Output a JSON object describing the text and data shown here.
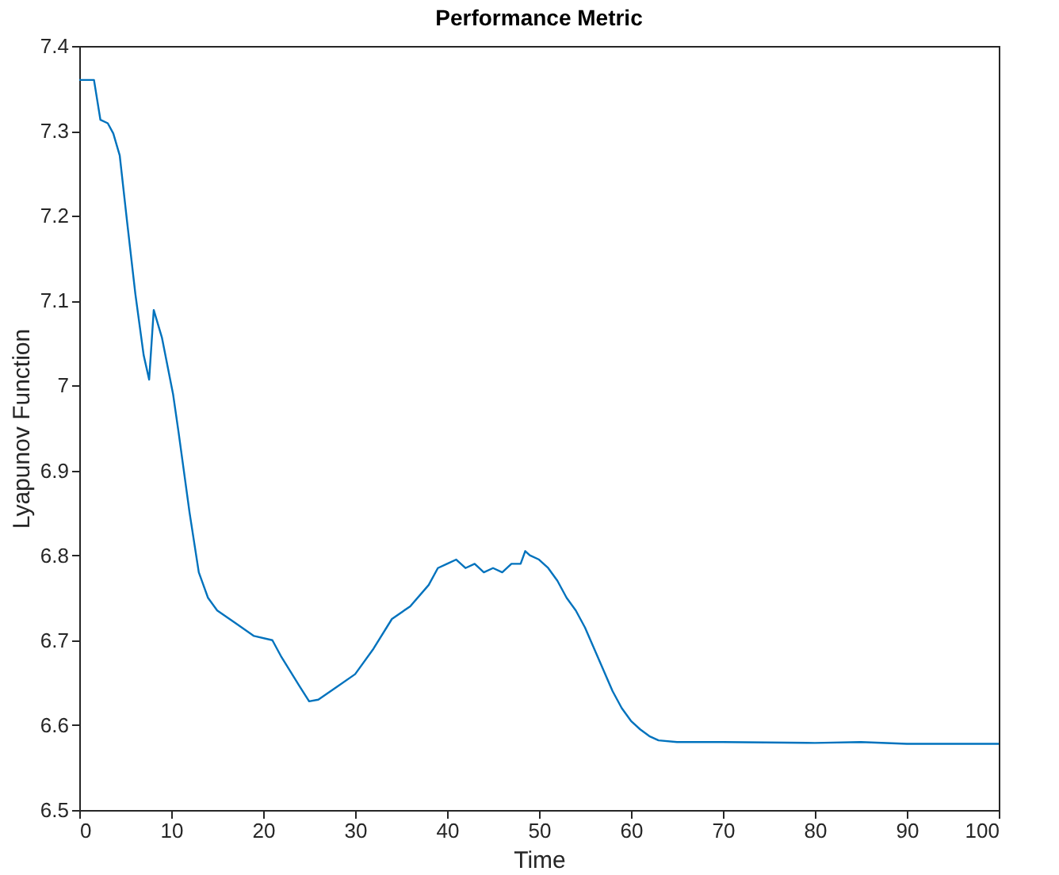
{
  "chart_data": {
    "type": "line",
    "title": "Performance Metric",
    "xlabel": "Time",
    "ylabel": "Lyapunov Function",
    "x": [
      0,
      1.6,
      2.3,
      3.1,
      3.7,
      4.4,
      5.2,
      6.1,
      7.0,
      7.6,
      8.1,
      9.0,
      10.2,
      10.8,
      12,
      13,
      14,
      15,
      17,
      19,
      21,
      22,
      24,
      25,
      26,
      28,
      30,
      32,
      34,
      36,
      38,
      39,
      40,
      41,
      42,
      43,
      44,
      45,
      46,
      47,
      48,
      48.5,
      49,
      50,
      51,
      52,
      53,
      54,
      55,
      56,
      57,
      58,
      59,
      60,
      61,
      62,
      63,
      65,
      70,
      80,
      85,
      90,
      100
    ],
    "series": [
      {
        "color": "#0072bd",
        "values": [
          7.36,
          7.36,
          7.313,
          7.309,
          7.297,
          7.271,
          7.193,
          7.108,
          7.036,
          7.007,
          7.089,
          7.056,
          6.99,
          6.945,
          6.85,
          6.78,
          6.75,
          6.735,
          6.72,
          6.705,
          6.7,
          6.68,
          6.645,
          6.628,
          6.63,
          6.645,
          6.66,
          6.69,
          6.725,
          6.74,
          6.765,
          6.785,
          6.79,
          6.795,
          6.785,
          6.79,
          6.78,
          6.785,
          6.78,
          6.79,
          6.79,
          6.805,
          6.8,
          6.795,
          6.785,
          6.77,
          6.75,
          6.735,
          6.715,
          6.69,
          6.665,
          6.64,
          6.62,
          6.605,
          6.595,
          6.587,
          6.582,
          6.58,
          6.58,
          6.579,
          6.58,
          6.578,
          6.578
        ]
      }
    ],
    "xlim": [
      0,
      100
    ],
    "ylim": [
      6.5,
      7.4
    ],
    "xticks": [
      0,
      10,
      20,
      30,
      40,
      50,
      60,
      70,
      80,
      90,
      100
    ],
    "yticks": [
      6.5,
      6.6,
      6.7,
      6.8,
      6.9,
      7,
      7.1,
      7.2,
      7.3,
      7.4
    ],
    "line_style": "solid"
  }
}
